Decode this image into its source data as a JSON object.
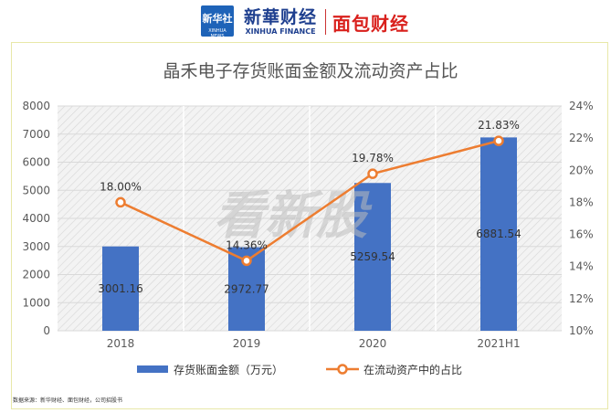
{
  "header": {
    "logo_text": "新华社",
    "logo_sub": "XINHUA NEWS",
    "brand_cn": "新華财经",
    "brand_en": "XINHUA FINANCE",
    "brand2": "面包财经"
  },
  "watermark": "看新股",
  "source_note": "数据来源：新华财经、面包财经，公司招股书",
  "colors": {
    "bar": "#4472C4",
    "line": "#ED7D31",
    "marker_fill": "#ffffff"
  },
  "chart_data": {
    "type": "bar",
    "title": "晶禾电子存货账面金额及流动资产占比",
    "categories": [
      "2018",
      "2019",
      "2020",
      "2021H1"
    ],
    "series": [
      {
        "name": "存货账面金额（万元）",
        "type": "bar",
        "axis": "left",
        "values": [
          3001.16,
          2972.77,
          5259.54,
          6881.54
        ],
        "labels": [
          "3001.16",
          "2972.77",
          "5259.54",
          "6881.54"
        ]
      },
      {
        "name": "在流动资产中的占比",
        "type": "line",
        "axis": "right",
        "values": [
          18.0,
          14.36,
          19.78,
          21.83
        ],
        "labels": [
          "18.00%",
          "14.36%",
          "19.78%",
          "21.83%"
        ]
      }
    ],
    "y_left": {
      "min": 0,
      "max": 8000,
      "step": 1000,
      "ticks": [
        "0",
        "1000",
        "2000",
        "3000",
        "4000",
        "5000",
        "6000",
        "7000",
        "8000"
      ]
    },
    "y_right": {
      "min": 10,
      "max": 24,
      "step": 2,
      "ticks": [
        "10%",
        "12%",
        "14%",
        "16%",
        "18%",
        "20%",
        "22%",
        "24%"
      ]
    },
    "grid": true,
    "legend_position": "bottom"
  }
}
